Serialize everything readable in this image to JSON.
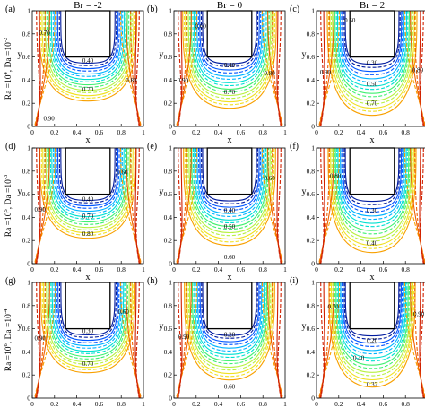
{
  "chart_data": {
    "type": "contour",
    "column_titles": [
      "Br = -2",
      "Br = 0",
      "Br = 2"
    ],
    "row_labels": [
      {
        "ra": "Ra =10",
        "ra_exp": "4",
        "da": ", Da =10",
        "da_exp": "-2"
      },
      {
        "ra": "Ra =10",
        "ra_exp": "5",
        "da": ", Da =10",
        "da_exp": "-3"
      },
      {
        "ra": "Ra =10",
        "ra_exp": "6",
        "da": ", Da =10",
        "da_exp": "-4"
      }
    ],
    "axes": {
      "xlabel": "x",
      "ylabel": "y",
      "xlim": [
        0,
        1
      ],
      "ylim": [
        0,
        1
      ],
      "xticks": [
        "0",
        "0.2",
        "0.4",
        "0.6",
        "0.8",
        "1"
      ],
      "yticks": [
        "0",
        "0.2",
        "0.4",
        "0.6",
        "0.8",
        "1"
      ],
      "obstacle": {
        "x": [
          0.3,
          0.7
        ],
        "y": [
          0.6,
          1.0
        ]
      }
    },
    "line_styles": [
      "solid",
      "dashed"
    ],
    "colors": [
      "#001a9e",
      "#0055ff",
      "#00b4ff",
      "#00e0d0",
      "#40f070",
      "#b8f040",
      "#f0e020",
      "#f8a000",
      "#f06000",
      "#d02000"
    ],
    "panels": [
      {
        "tag": "(a)",
        "labels": [
          {
            "text": "0.70",
            "x": 0.11,
            "y": 0.81
          },
          {
            "text": "0.40",
            "x": 0.5,
            "y": 0.57
          },
          {
            "text": "0.70",
            "x": 0.5,
            "y": 0.32
          },
          {
            "text": "0.80",
            "x": 0.89,
            "y": 0.4
          },
          {
            "text": "0.90",
            "x": 0.15,
            "y": 0.07
          }
        ]
      },
      {
        "tag": "(b)",
        "labels": [
          {
            "text": "0.60",
            "x": 0.24,
            "y": 0.87
          },
          {
            "text": "0.40",
            "x": 0.5,
            "y": 0.53
          },
          {
            "text": "0.70",
            "x": 0.5,
            "y": 0.3
          },
          {
            "text": "0.80",
            "x": 0.86,
            "y": 0.46
          },
          {
            "text": "0.90",
            "x": 0.08,
            "y": 0.4
          }
        ]
      },
      {
        "tag": "(c)",
        "labels": [
          {
            "text": "0.50",
            "x": 0.3,
            "y": 0.92
          },
          {
            "text": "0.30",
            "x": 0.5,
            "y": 0.55
          },
          {
            "text": "0.50",
            "x": 0.5,
            "y": 0.37
          },
          {
            "text": "0.80",
            "x": 0.91,
            "y": 0.49
          },
          {
            "text": "0.90",
            "x": 0.08,
            "y": 0.47
          },
          {
            "text": "0.70",
            "x": 0.5,
            "y": 0.2
          }
        ]
      },
      {
        "tag": "(d)",
        "labels": [
          {
            "text": "0.60",
            "x": 0.81,
            "y": 0.79
          },
          {
            "text": "0.40",
            "x": 0.5,
            "y": 0.56
          },
          {
            "text": "0.70",
            "x": 0.5,
            "y": 0.41
          },
          {
            "text": "0.80",
            "x": 0.5,
            "y": 0.26
          },
          {
            "text": "0.90",
            "x": 0.07,
            "y": 0.47
          }
        ]
      },
      {
        "tag": "(e)",
        "labels": [
          {
            "text": "0.60",
            "x": 0.86,
            "y": 0.74
          },
          {
            "text": "0.40",
            "x": 0.5,
            "y": 0.46
          },
          {
            "text": "0.50",
            "x": 0.5,
            "y": 0.32
          },
          {
            "text": "0.60",
            "x": 0.5,
            "y": 0.06
          }
        ]
      },
      {
        "tag": "(f)",
        "labels": [
          {
            "text": "0.80",
            "x": 0.17,
            "y": 0.76
          },
          {
            "text": "0.30",
            "x": 0.5,
            "y": 0.46
          },
          {
            "text": "0.40",
            "x": 0.5,
            "y": 0.18
          }
        ]
      },
      {
        "tag": "(g)",
        "labels": [
          {
            "text": "0.60",
            "x": 0.82,
            "y": 0.75
          },
          {
            "text": "0.30",
            "x": 0.5,
            "y": 0.58
          },
          {
            "text": "0.70",
            "x": 0.5,
            "y": 0.3
          },
          {
            "text": "0.90",
            "x": 0.07,
            "y": 0.52
          }
        ]
      },
      {
        "tag": "(h)",
        "labels": [
          {
            "text": "0.90",
            "x": 0.09,
            "y": 0.53
          },
          {
            "text": "0.20",
            "x": 0.5,
            "y": 0.55
          },
          {
            "text": "0.60",
            "x": 0.5,
            "y": 0.1
          }
        ]
      },
      {
        "tag": "(i)",
        "labels": [
          {
            "text": "0.70",
            "x": 0.15,
            "y": 0.79
          },
          {
            "text": "0.90",
            "x": 0.92,
            "y": 0.73
          },
          {
            "text": "0.20",
            "x": 0.5,
            "y": 0.5
          },
          {
            "text": "0.40",
            "x": 0.38,
            "y": 0.35
          },
          {
            "text": "0.32",
            "x": 0.5,
            "y": 0.12
          }
        ]
      }
    ]
  }
}
